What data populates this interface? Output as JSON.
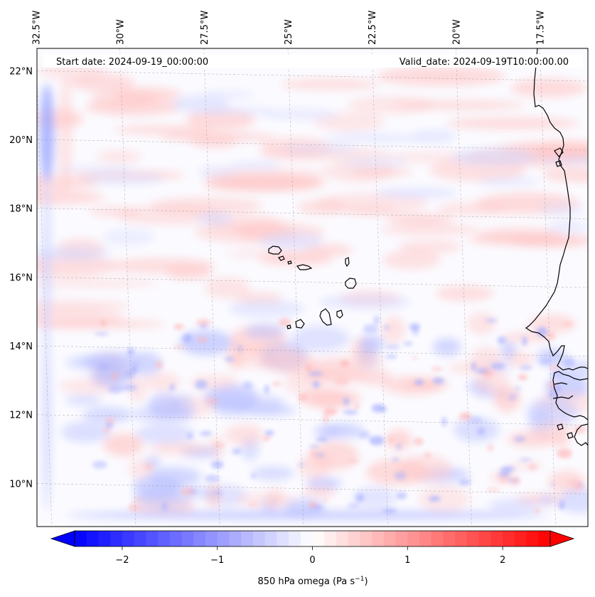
{
  "header": {
    "start_date": "Start date: 2024-09-19_00:00:00",
    "valid_date": "Valid_date: 2024-09-19T10:00:00.00"
  },
  "axes": {
    "lon_ticks": [
      "32.5°W",
      "30°W",
      "27.5°W",
      "25°W",
      "22.5°W",
      "20°W",
      "17.5°W"
    ],
    "lat_ticks": [
      "22°N",
      "20°N",
      "18°N",
      "16°N",
      "14°N",
      "12°N",
      "10°N"
    ],
    "lon_values": [
      -32.5,
      -30,
      -27.5,
      -25,
      -22.5,
      -20,
      -17.5
    ],
    "lat_values": [
      22,
      20,
      18,
      16,
      14,
      12,
      10
    ],
    "lon_range": [
      -32.7,
      -16.3
    ],
    "lat_range": [
      8.9,
      22.8
    ],
    "gridlines": true
  },
  "colorbar": {
    "label_prefix": "850 hPa omega (Pa s",
    "label_exponent": "−1",
    "label_suffix": ")",
    "tick_labels": [
      "−2",
      "−1",
      "0",
      "1",
      "2"
    ],
    "tick_values": [
      -2,
      -1,
      0,
      1,
      2
    ],
    "range": [
      -2.5,
      2.5
    ],
    "levels": 40,
    "extend": "both",
    "colormap": "bwr",
    "colors": {
      "min": "#0000ff",
      "mid": "#ffffff",
      "max": "#ff0000"
    }
  },
  "map": {
    "field": "850 hPa omega",
    "coastline_color": "#000000",
    "background_field_color": "#fafaff"
  }
}
